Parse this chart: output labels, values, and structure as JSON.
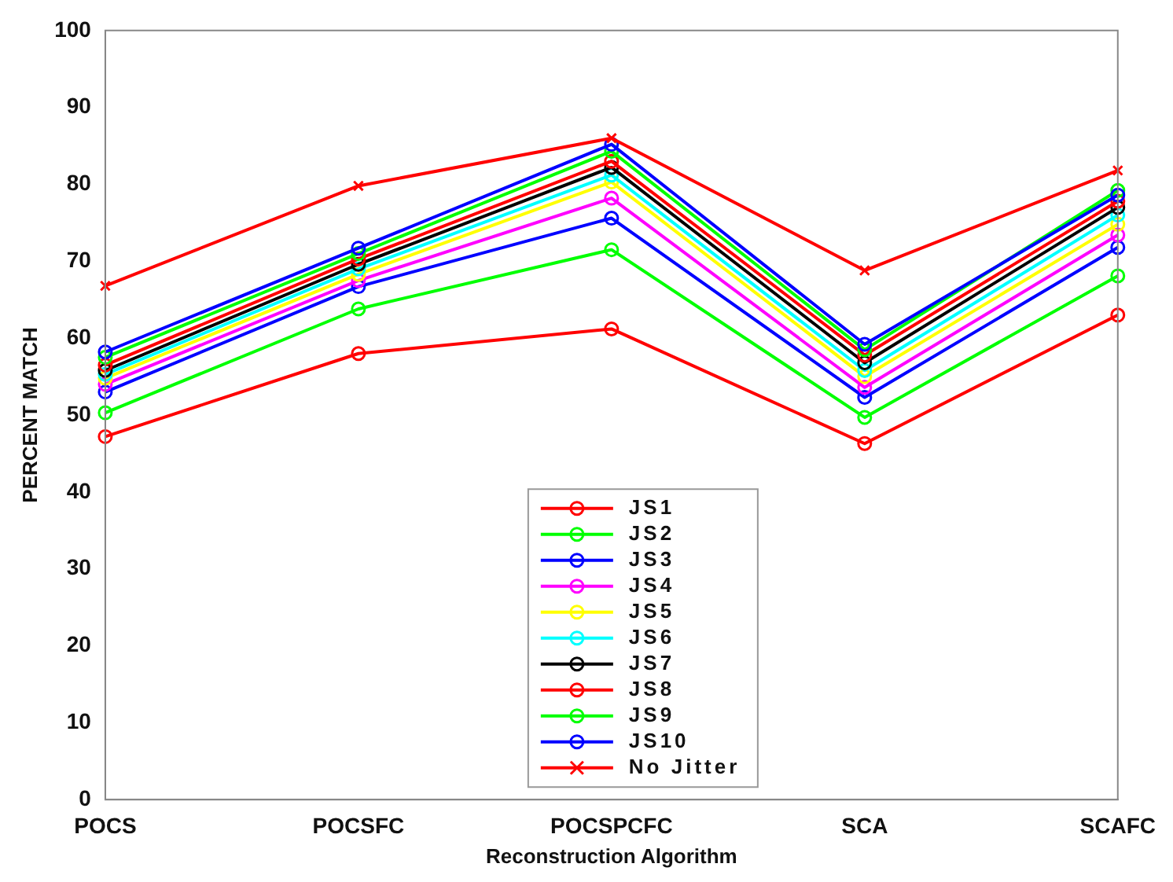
{
  "chart_data": {
    "type": "line",
    "xlabel": "Reconstruction Algorithm",
    "ylabel": "PERCENT MATCH",
    "categories": [
      "POCS",
      "POCSFC",
      "POCSPCFC",
      "SCA",
      "SCAFC"
    ],
    "ylim": [
      0,
      100
    ],
    "yticks": [
      0,
      10,
      20,
      30,
      40,
      50,
      60,
      70,
      80,
      90,
      100
    ],
    "grid": false,
    "legend": "bottom",
    "marker": "circle",
    "series": [
      {
        "name": "JS1",
        "color": "#ff0000",
        "values": [
          47.2,
          58,
          61.2,
          46.3,
          63
        ]
      },
      {
        "name": "JS2",
        "color": "#00ff00",
        "values": [
          50.3,
          63.8,
          71.5,
          49.7,
          68.1
        ]
      },
      {
        "name": "JS3",
        "color": "#0000ff",
        "values": [
          53,
          66.7,
          75.6,
          52.3,
          71.8
        ]
      },
      {
        "name": "JS4",
        "color": "#ff00ff",
        "values": [
          54,
          67.5,
          78.2,
          53.6,
          73.4
        ]
      },
      {
        "name": "JS5",
        "color": "#ffff00",
        "values": [
          54.8,
          68.3,
          80.3,
          55,
          74.8
        ]
      },
      {
        "name": "JS6",
        "color": "#00ffff",
        "values": [
          55.3,
          69,
          81.2,
          55.8,
          76
        ]
      },
      {
        "name": "JS7",
        "color": "#000000",
        "values": [
          55.8,
          69.6,
          82.2,
          56.8,
          77
        ]
      },
      {
        "name": "JS8",
        "color": "#ff0000",
        "values": [
          56.5,
          70.3,
          83,
          57.8,
          77.8
        ]
      },
      {
        "name": "JS9",
        "color": "#00ff00",
        "values": [
          57.5,
          71,
          84.3,
          58.5,
          79.2
        ]
      },
      {
        "name": "JS10",
        "color": "#0000ff",
        "values": [
          58.2,
          71.7,
          85.2,
          59.2,
          78.6
        ]
      },
      {
        "name": "No Jitter",
        "color": "#ff0000",
        "marker": "cross",
        "values": [
          66.8,
          79.8,
          86,
          68.8,
          81.8
        ]
      }
    ]
  }
}
